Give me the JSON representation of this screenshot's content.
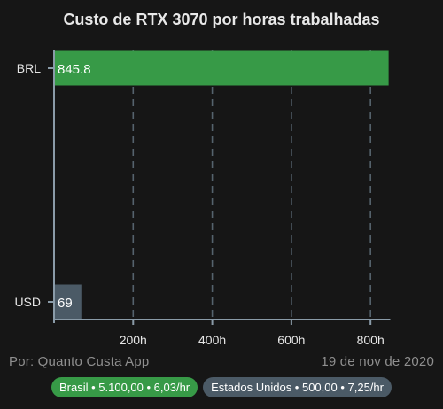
{
  "title": "Custo de RTX 3070 por horas trabalhadas",
  "footer": {
    "source": "Por: Quanto Custa App",
    "date": "19 de nov de 2020"
  },
  "legend_chips": [
    {
      "label": "Brasil • 5.100,00 • 6,03/hr",
      "color": "#379a47"
    },
    {
      "label": "Estados Unidos • 500,00 • 7,25/hr",
      "color": "#4b5a66"
    }
  ],
  "colors": {
    "background": "#161616",
    "brl_bar": "#379a47",
    "usd_bar": "#4b5a66",
    "axis": "#8a9ba8",
    "grid": "#55636d"
  },
  "chart_data": {
    "type": "bar",
    "orientation": "horizontal",
    "title": "Custo de RTX 3070 por horas trabalhadas",
    "categories": [
      "BRL",
      "USD"
    ],
    "values": [
      845.8,
      69
    ],
    "data_labels": [
      "845.8",
      "69"
    ],
    "xlim": [
      0,
      850
    ],
    "x_ticks": [
      200,
      400,
      600,
      800
    ],
    "x_tick_labels": [
      "200h",
      "400h",
      "600h",
      "800h"
    ],
    "grid": true,
    "xlabel": "",
    "ylabel": ""
  }
}
